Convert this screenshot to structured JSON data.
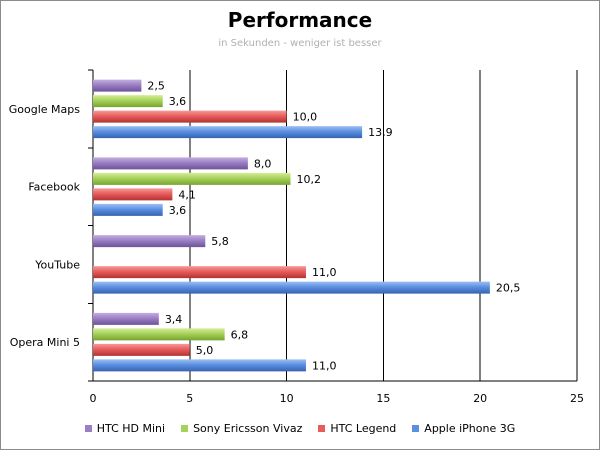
{
  "chart_data": {
    "type": "bar",
    "orientation": "horizontal",
    "title": "Performance",
    "subtitle": "in Sekunden - weniger ist besser",
    "categories": [
      "Google Maps",
      "Facebook",
      "YouTube",
      "Opera Mini 5"
    ],
    "series": [
      {
        "name": "HTC HD Mini",
        "color": "#9b7fc4",
        "values": [
          2.5,
          8.0,
          5.8,
          3.4
        ],
        "labels": [
          "2,5",
          "8,0",
          "5,8",
          "3,4"
        ]
      },
      {
        "name": "Sony Ericsson Vivaz",
        "color": "#a6d15a",
        "values": [
          3.6,
          10.2,
          null,
          6.8
        ],
        "labels": [
          "3,6",
          "10,2",
          null,
          "6,8"
        ]
      },
      {
        "name": "HTC Legend",
        "color": "#e85c5c",
        "values": [
          10.0,
          4.1,
          11.0,
          5.0
        ],
        "labels": [
          "10,0",
          "4,1",
          "11,0",
          "5,0"
        ]
      },
      {
        "name": "Apple iPhone 3G",
        "color": "#5b8fe0",
        "values": [
          13.9,
          3.6,
          20.5,
          11.0
        ],
        "labels": [
          "13,9",
          "3,6",
          "20,5",
          "11,0"
        ]
      }
    ],
    "xlim": [
      0,
      25
    ],
    "xticks": [
      0,
      5,
      10,
      15,
      20,
      25
    ],
    "grid": true,
    "legend": "bottom"
  }
}
